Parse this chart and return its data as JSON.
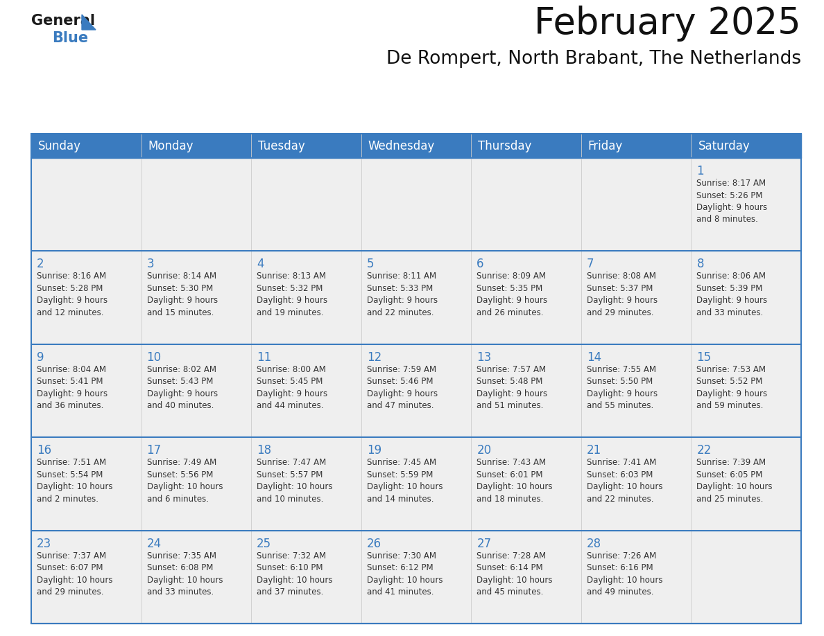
{
  "title": "February 2025",
  "subtitle": "De Rompert, North Brabant, The Netherlands",
  "header_color": "#3a7bbf",
  "header_text_color": "#ffffff",
  "cell_bg_color": "#efefef",
  "day_text_color": "#3a7bbf",
  "info_text_color": "#333333",
  "border_color": "#3a7bbf",
  "days_of_week": [
    "Sunday",
    "Monday",
    "Tuesday",
    "Wednesday",
    "Thursday",
    "Friday",
    "Saturday"
  ],
  "weeks": [
    [
      {
        "day": null,
        "info": null
      },
      {
        "day": null,
        "info": null
      },
      {
        "day": null,
        "info": null
      },
      {
        "day": null,
        "info": null
      },
      {
        "day": null,
        "info": null
      },
      {
        "day": null,
        "info": null
      },
      {
        "day": 1,
        "info": "Sunrise: 8:17 AM\nSunset: 5:26 PM\nDaylight: 9 hours\nand 8 minutes."
      }
    ],
    [
      {
        "day": 2,
        "info": "Sunrise: 8:16 AM\nSunset: 5:28 PM\nDaylight: 9 hours\nand 12 minutes."
      },
      {
        "day": 3,
        "info": "Sunrise: 8:14 AM\nSunset: 5:30 PM\nDaylight: 9 hours\nand 15 minutes."
      },
      {
        "day": 4,
        "info": "Sunrise: 8:13 AM\nSunset: 5:32 PM\nDaylight: 9 hours\nand 19 minutes."
      },
      {
        "day": 5,
        "info": "Sunrise: 8:11 AM\nSunset: 5:33 PM\nDaylight: 9 hours\nand 22 minutes."
      },
      {
        "day": 6,
        "info": "Sunrise: 8:09 AM\nSunset: 5:35 PM\nDaylight: 9 hours\nand 26 minutes."
      },
      {
        "day": 7,
        "info": "Sunrise: 8:08 AM\nSunset: 5:37 PM\nDaylight: 9 hours\nand 29 minutes."
      },
      {
        "day": 8,
        "info": "Sunrise: 8:06 AM\nSunset: 5:39 PM\nDaylight: 9 hours\nand 33 minutes."
      }
    ],
    [
      {
        "day": 9,
        "info": "Sunrise: 8:04 AM\nSunset: 5:41 PM\nDaylight: 9 hours\nand 36 minutes."
      },
      {
        "day": 10,
        "info": "Sunrise: 8:02 AM\nSunset: 5:43 PM\nDaylight: 9 hours\nand 40 minutes."
      },
      {
        "day": 11,
        "info": "Sunrise: 8:00 AM\nSunset: 5:45 PM\nDaylight: 9 hours\nand 44 minutes."
      },
      {
        "day": 12,
        "info": "Sunrise: 7:59 AM\nSunset: 5:46 PM\nDaylight: 9 hours\nand 47 minutes."
      },
      {
        "day": 13,
        "info": "Sunrise: 7:57 AM\nSunset: 5:48 PM\nDaylight: 9 hours\nand 51 minutes."
      },
      {
        "day": 14,
        "info": "Sunrise: 7:55 AM\nSunset: 5:50 PM\nDaylight: 9 hours\nand 55 minutes."
      },
      {
        "day": 15,
        "info": "Sunrise: 7:53 AM\nSunset: 5:52 PM\nDaylight: 9 hours\nand 59 minutes."
      }
    ],
    [
      {
        "day": 16,
        "info": "Sunrise: 7:51 AM\nSunset: 5:54 PM\nDaylight: 10 hours\nand 2 minutes."
      },
      {
        "day": 17,
        "info": "Sunrise: 7:49 AM\nSunset: 5:56 PM\nDaylight: 10 hours\nand 6 minutes."
      },
      {
        "day": 18,
        "info": "Sunrise: 7:47 AM\nSunset: 5:57 PM\nDaylight: 10 hours\nand 10 minutes."
      },
      {
        "day": 19,
        "info": "Sunrise: 7:45 AM\nSunset: 5:59 PM\nDaylight: 10 hours\nand 14 minutes."
      },
      {
        "day": 20,
        "info": "Sunrise: 7:43 AM\nSunset: 6:01 PM\nDaylight: 10 hours\nand 18 minutes."
      },
      {
        "day": 21,
        "info": "Sunrise: 7:41 AM\nSunset: 6:03 PM\nDaylight: 10 hours\nand 22 minutes."
      },
      {
        "day": 22,
        "info": "Sunrise: 7:39 AM\nSunset: 6:05 PM\nDaylight: 10 hours\nand 25 minutes."
      }
    ],
    [
      {
        "day": 23,
        "info": "Sunrise: 7:37 AM\nSunset: 6:07 PM\nDaylight: 10 hours\nand 29 minutes."
      },
      {
        "day": 24,
        "info": "Sunrise: 7:35 AM\nSunset: 6:08 PM\nDaylight: 10 hours\nand 33 minutes."
      },
      {
        "day": 25,
        "info": "Sunrise: 7:32 AM\nSunset: 6:10 PM\nDaylight: 10 hours\nand 37 minutes."
      },
      {
        "day": 26,
        "info": "Sunrise: 7:30 AM\nSunset: 6:12 PM\nDaylight: 10 hours\nand 41 minutes."
      },
      {
        "day": 27,
        "info": "Sunrise: 7:28 AM\nSunset: 6:14 PM\nDaylight: 10 hours\nand 45 minutes."
      },
      {
        "day": 28,
        "info": "Sunrise: 7:26 AM\nSunset: 6:16 PM\nDaylight: 10 hours\nand 49 minutes."
      },
      {
        "day": null,
        "info": null
      }
    ]
  ],
  "logo_general_color": "#1a1a1a",
  "logo_blue_color": "#3a7bbf",
  "title_fontsize": 38,
  "subtitle_fontsize": 19,
  "header_fontsize": 12,
  "day_num_fontsize": 12,
  "info_fontsize": 8.5
}
